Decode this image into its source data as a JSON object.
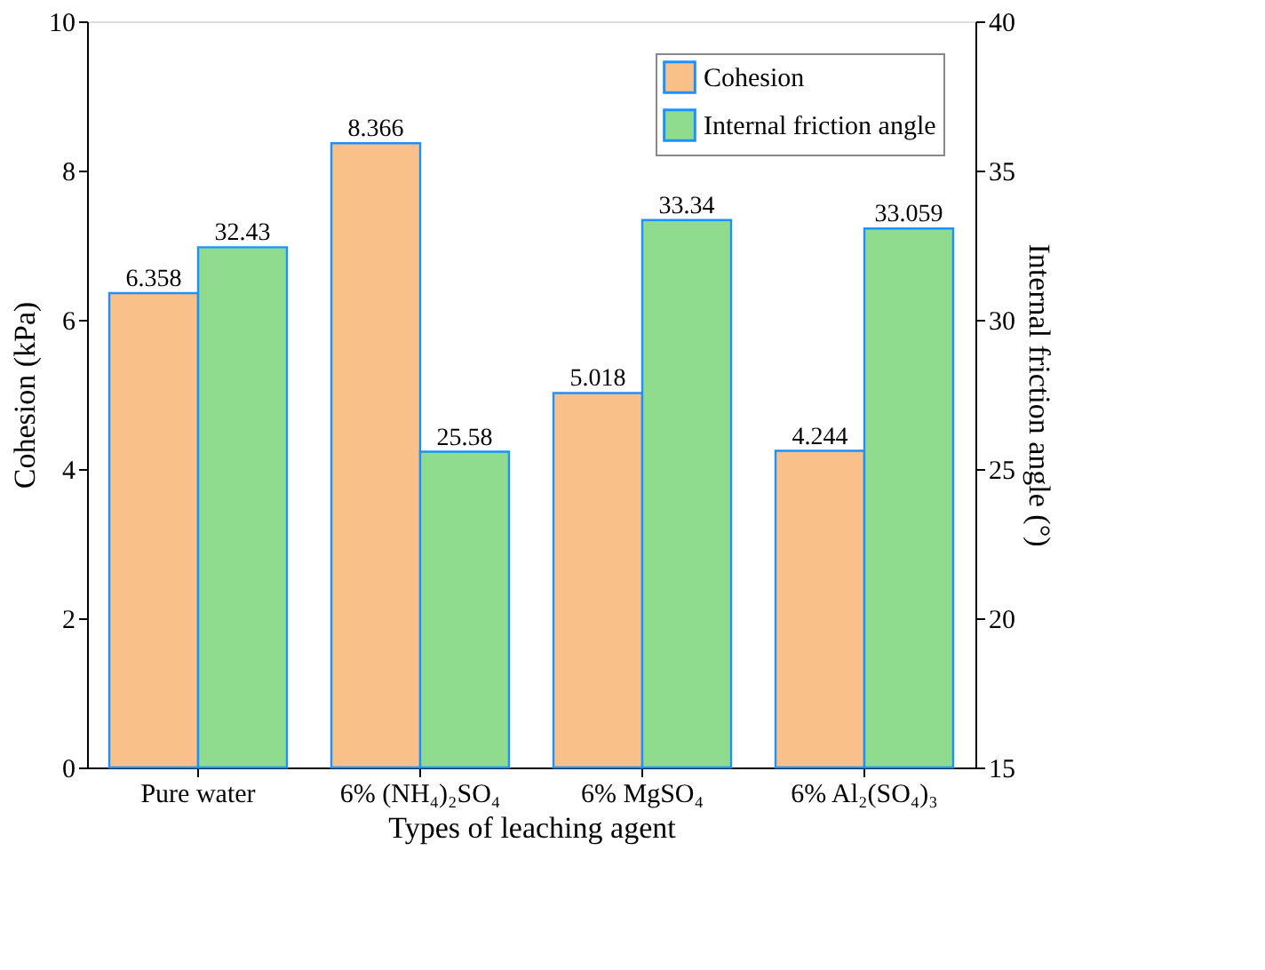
{
  "chart_data": {
    "type": "bar",
    "xlabel": "Types of leaching agent",
    "ylabel": "Cohesion (kPa)",
    "y2label": "Internal friction angle (°)",
    "categories": [
      "Pure water",
      "6% (NH₄)₂SO₄",
      "6% MgSO₄",
      "6% Al₂(SO₄)₃"
    ],
    "series": [
      {
        "name": "Cohesion",
        "color": "#f9c089",
        "values": [
          6.358,
          8.366,
          5.018,
          4.244
        ]
      },
      {
        "name": "Internal friction angle",
        "color": "#8fdc8f",
        "axis": "y2",
        "values": [
          32.43,
          25.58,
          33.34,
          33.059
        ]
      }
    ],
    "ylim": [
      0,
      10
    ],
    "yticks": [
      0,
      2,
      4,
      6,
      8,
      10
    ],
    "y2lim": [
      15,
      40
    ],
    "y2ticks": [
      15,
      20,
      25,
      30,
      35,
      40
    ],
    "data_labels": true,
    "legend": "top right",
    "grid": false
  }
}
